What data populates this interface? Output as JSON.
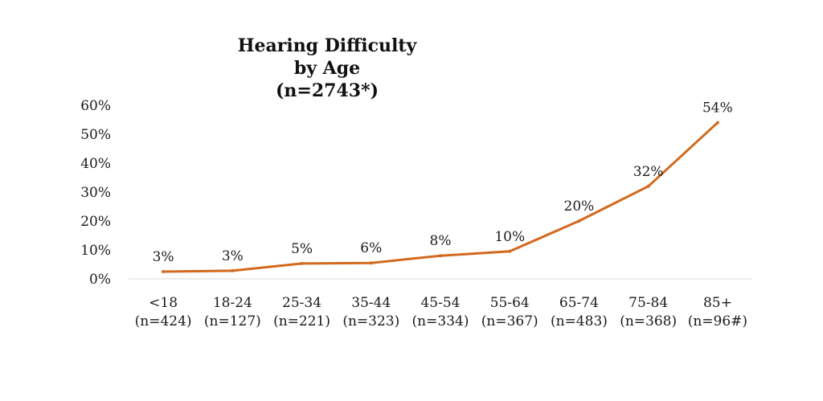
{
  "chart_data": {
    "type": "line",
    "title_lines": [
      "Hearing Difficulty",
      "by Age",
      "(n=2743*)"
    ],
    "categories": [
      "<18",
      "18-24",
      "25-34",
      "35-44",
      "45-54",
      "55-64",
      "65-74",
      "75-84",
      "85+"
    ],
    "sample_sizes": [
      "(n=424)",
      "(n=127)",
      "(n=221)",
      "(n=323)",
      "(n=334)",
      "(n=367)",
      "(n=483)",
      "(n=368)",
      "(n=96#)"
    ],
    "values": [
      2.5,
      2.8,
      5.3,
      5.5,
      8.0,
      9.5,
      20.0,
      32.0,
      54.0
    ],
    "data_labels": [
      "3%",
      "3%",
      "5%",
      "6%",
      "8%",
      "10%",
      "20%",
      "32%",
      "54%"
    ],
    "y_ticks": [
      0,
      10,
      20,
      30,
      40,
      50,
      60
    ],
    "y_tick_labels": [
      "0%",
      "10%",
      "20%",
      "30%",
      "40%",
      "50%",
      "60%"
    ],
    "ylim": [
      0,
      60
    ],
    "grid": false,
    "legend": "none",
    "line_color": "#d2691e",
    "xlabel": "",
    "ylabel": ""
  }
}
